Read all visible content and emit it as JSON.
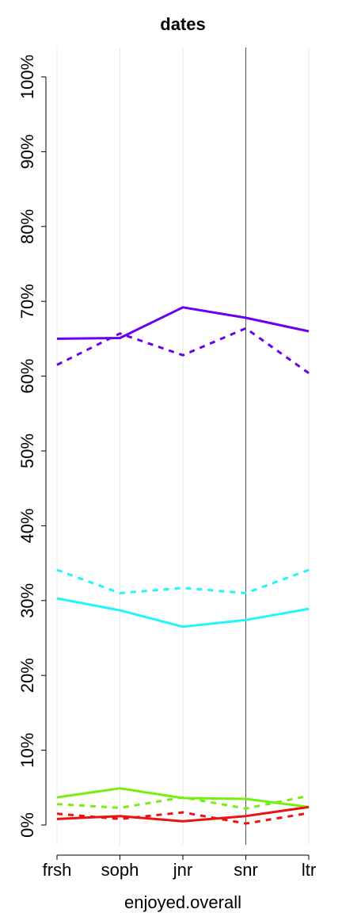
{
  "chart_data": {
    "type": "line",
    "title": "dates",
    "xlabel": "enjoyed.overall",
    "ylabel": "",
    "categories": [
      "frsh",
      "soph",
      "jnr",
      "snr",
      "ltr"
    ],
    "y_ticks": [
      "0%",
      "10%",
      "20%",
      "30%",
      "40%",
      "50%",
      "60%",
      "70%",
      "80%",
      "90%",
      "100%"
    ],
    "ylim": [
      0,
      100
    ],
    "y_unit": "percent",
    "reference_line_category": "snr",
    "grid": "vertical",
    "series": [
      {
        "color": "#6A00F0",
        "style": "solid",
        "values": [
          65.0,
          65.1,
          69.2,
          67.8,
          66.0
        ]
      },
      {
        "color": "#6A00F0",
        "style": "dashed",
        "values": [
          61.5,
          65.7,
          62.8,
          66.4,
          60.4
        ]
      },
      {
        "color": "#22F5FA",
        "style": "solid",
        "values": [
          30.3,
          28.7,
          26.5,
          27.4,
          28.9
        ]
      },
      {
        "color": "#22F5FA",
        "style": "dashed",
        "values": [
          34.1,
          31.0,
          31.7,
          31.0,
          34.1
        ]
      },
      {
        "color": "#77EE11",
        "style": "solid",
        "values": [
          3.7,
          4.9,
          3.6,
          3.5,
          2.4
        ]
      },
      {
        "color": "#77EE11",
        "style": "dashed",
        "values": [
          2.8,
          2.3,
          3.7,
          2.2,
          3.9
        ]
      },
      {
        "color": "#EE1111",
        "style": "solid",
        "values": [
          0.8,
          1.2,
          0.5,
          1.2,
          2.4
        ]
      },
      {
        "color": "#EE1111",
        "style": "dashed",
        "values": [
          1.5,
          0.8,
          1.7,
          0.2,
          1.6
        ]
      }
    ]
  }
}
